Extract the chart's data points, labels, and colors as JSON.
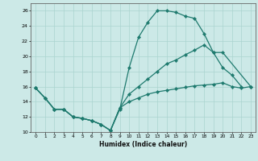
{
  "xlabel": "Humidex (Indice chaleur)",
  "background_color": "#cce9e7",
  "grid_color": "#aad4d0",
  "line_color": "#1e7a6e",
  "xlim": [
    -0.5,
    23.5
  ],
  "ylim": [
    10,
    27
  ],
  "xticks": [
    0,
    1,
    2,
    3,
    4,
    5,
    6,
    7,
    8,
    9,
    10,
    11,
    12,
    13,
    14,
    15,
    16,
    17,
    18,
    19,
    20,
    21,
    22,
    23
  ],
  "yticks": [
    10,
    12,
    14,
    16,
    18,
    20,
    22,
    24,
    26
  ],
  "line1_x": [
    0,
    1,
    2,
    3,
    4,
    5,
    6,
    7,
    8,
    9,
    10,
    11,
    12,
    13,
    14,
    15,
    16,
    17,
    18,
    19,
    20,
    21,
    22
  ],
  "line1_y": [
    15.8,
    14.5,
    13.0,
    13.0,
    12.0,
    11.8,
    11.5,
    11.0,
    10.2,
    13.0,
    18.5,
    22.5,
    24.5,
    26.0,
    26.0,
    25.8,
    25.3,
    25.0,
    23.0,
    20.5,
    18.5,
    17.5,
    16.0
  ],
  "line2_x": [
    0,
    1,
    2,
    3,
    4,
    5,
    6,
    7,
    8,
    9,
    10,
    11,
    12,
    13,
    14,
    15,
    16,
    17,
    18,
    19,
    20,
    21,
    22,
    23
  ],
  "line2_y": [
    15.8,
    14.5,
    13.0,
    13.0,
    12.0,
    11.8,
    11.5,
    11.0,
    10.2,
    13.2,
    14.0,
    14.5,
    15.0,
    15.3,
    15.5,
    15.7,
    15.9,
    16.1,
    16.2,
    16.3,
    16.5,
    16.0,
    15.8,
    16.0
  ],
  "line3_x": [
    0,
    1,
    2,
    3,
    4,
    5,
    6,
    7,
    8,
    9,
    10,
    11,
    12,
    13,
    14,
    15,
    16,
    17,
    18,
    19,
    20,
    23
  ],
  "line3_y": [
    15.8,
    14.5,
    13.0,
    13.0,
    12.0,
    11.8,
    11.5,
    11.0,
    10.2,
    13.2,
    15.0,
    16.0,
    17.0,
    18.0,
    19.0,
    19.5,
    20.2,
    20.8,
    21.5,
    20.5,
    20.5,
    16.0
  ]
}
